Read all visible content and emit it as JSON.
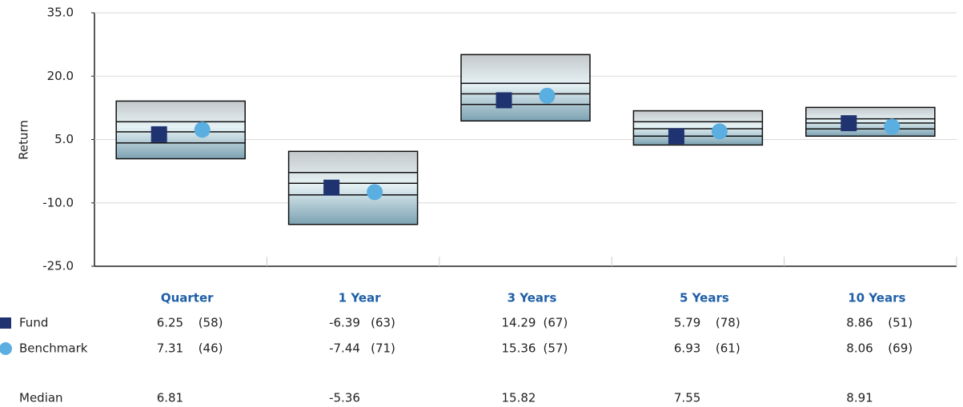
{
  "chart_data": {
    "type": "floating_box",
    "ylabel": "Return",
    "ylim": [
      -25,
      35
    ],
    "yticks": [
      {
        "value": -25,
        "label": "-25.0"
      },
      {
        "value": -10,
        "label": "-10.0"
      },
      {
        "value": 5,
        "label": "5.0"
      },
      {
        "value": 20,
        "label": "20.0"
      },
      {
        "value": 35,
        "label": "35.0"
      }
    ],
    "grid": true,
    "categories": [
      "Quarter",
      "1 Year",
      "3 Years",
      "5 Years",
      "10 Years"
    ],
    "boxes": {
      "top": [
        14.1,
        2.2,
        25.1,
        11.8,
        12.6
      ],
      "upper": [
        9.2,
        -2.8,
        18.3,
        9.2,
        9.9
      ],
      "lower": [
        4.2,
        -8.1,
        13.3,
        5.8,
        7.5
      ],
      "bottom": [
        0.45,
        -15.1,
        9.4,
        3.7,
        5.8
      ]
    },
    "series": [
      {
        "name": "Fund",
        "color": "#1f3370",
        "marker": "square",
        "values": [
          6.25,
          -6.39,
          14.29,
          5.79,
          8.86
        ],
        "ranks": [
          58,
          63,
          67,
          78,
          51
        ],
        "rank_labels": [
          "(58)",
          "(63)",
          "(67)",
          "(78)",
          "(51)"
        ]
      },
      {
        "name": "Benchmark",
        "color": "#5aaee0",
        "marker": "circle",
        "values": [
          7.31,
          -7.44,
          15.36,
          6.93,
          8.06
        ],
        "ranks": [
          46,
          71,
          57,
          61,
          69
        ],
        "rank_labels": [
          "(46)",
          "(71)",
          "(57)",
          "(61)",
          "(69)"
        ]
      }
    ],
    "median": {
      "name": "Median",
      "values": [
        6.81,
        -5.36,
        15.82,
        7.55,
        8.91
      ]
    }
  }
}
